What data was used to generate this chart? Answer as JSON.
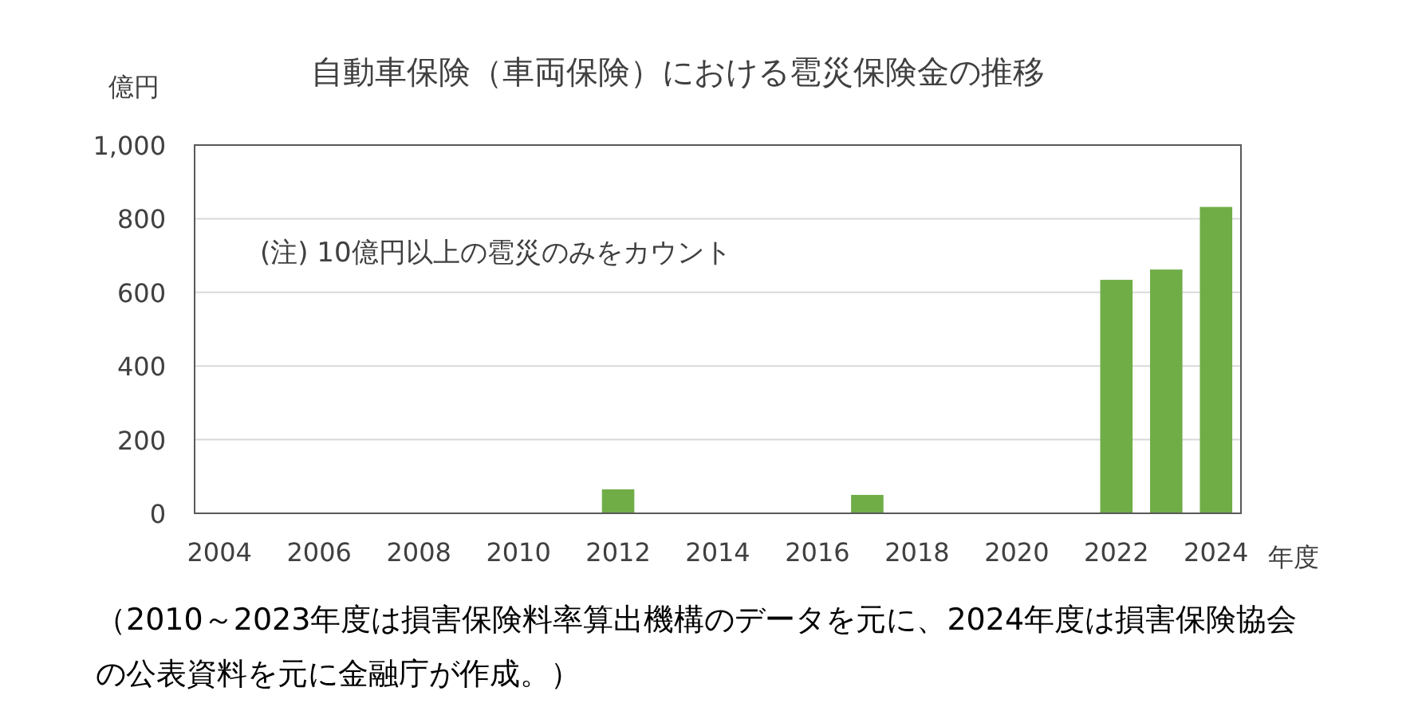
{
  "chart_data": {
    "type": "bar",
    "title": "自動車保険（車両保険）における雹災保険金の推移",
    "ylabel": "億円",
    "xlabel": "年度",
    "x": [
      2012,
      2017,
      2022,
      2023,
      2024
    ],
    "values": [
      65,
      50,
      634,
      662,
      832
    ],
    "color": "#70ad47",
    "xlim": [
      2003.5,
      2024.5
    ],
    "xticks": [
      2004,
      2006,
      2008,
      2010,
      2012,
      2014,
      2016,
      2018,
      2020,
      2022,
      2024
    ],
    "ylim": [
      0,
      1000
    ],
    "yticks": [
      0,
      200,
      400,
      600,
      800,
      {
        "value": 1000,
        "label": "1,000"
      }
    ],
    "grid": "y",
    "annotations": [
      "(注) 10億円以上の雹災のみをカウント",
      "（2010～2023年度は損害保険料率算出機構のデータを元に、2024年度は損害保険協会の公表資料を元に金融庁が作成。）"
    ]
  }
}
